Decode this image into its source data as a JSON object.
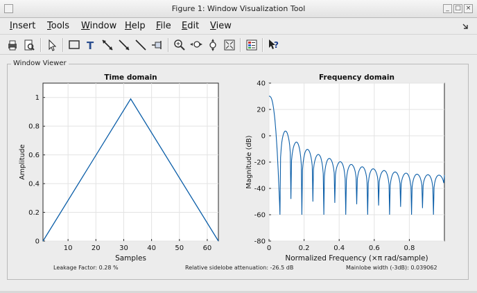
{
  "window": {
    "title": "Figure 1: Window Visualization Tool"
  },
  "menu": [
    {
      "id": "insert",
      "label": "Insert",
      "u": "I",
      "rest": "nsert"
    },
    {
      "id": "tools",
      "label": "Tools",
      "u": "T",
      "rest": "ools"
    },
    {
      "id": "window",
      "label": "Window",
      "u": "W",
      "rest": "indow"
    },
    {
      "id": "help",
      "label": "Help",
      "u": "H",
      "rest": "elp"
    },
    {
      "id": "file",
      "label": "File",
      "u": "F",
      "rest": "ile"
    },
    {
      "id": "edit",
      "label": "Edit",
      "u": "E",
      "rest": "dit"
    },
    {
      "id": "view",
      "label": "View",
      "u": "V",
      "rest": "iew"
    }
  ],
  "toolbar": {
    "icons": [
      "print-icon",
      "print-preview-icon",
      "select-arrow-icon",
      "rectangle-icon",
      "text-icon",
      "double-arrow-icon",
      "arrow-icon",
      "line-icon",
      "pin-icon",
      "zoom-in-icon",
      "zoom-x-icon",
      "zoom-y-icon",
      "full-view-icon",
      "legend-icon",
      "whats-this-icon"
    ]
  },
  "panel": {
    "title": "Window Viewer"
  },
  "footer": {
    "leakage": "Leakage Factor: 0.28 %",
    "sidelobe": "Relative sidelobe attenuation: -26.5 dB",
    "mainlobe": "Mainlobe width (-3dB): 0.039062"
  },
  "chart_data": [
    {
      "type": "line",
      "title": "Time domain",
      "xlabel": "Samples",
      "ylabel": "Amplitude",
      "xlim": [
        1,
        64
      ],
      "ylim": [
        0,
        1.1
      ],
      "xticks": [
        10,
        20,
        30,
        40,
        50,
        60
      ],
      "yticks": [
        0,
        0.2,
        0.4,
        0.6,
        0.8,
        1
      ],
      "ytick_labels": [
        "0",
        "0.2",
        "0.4",
        "0.6",
        "0.8",
        "1"
      ],
      "grid": true,
      "color": "#0b5ea8",
      "series": [
        {
          "x": [
            1,
            32.5,
            64
          ],
          "y": [
            0,
            0.99,
            0
          ]
        }
      ]
    },
    {
      "type": "line",
      "title": "Frequency domain",
      "xlabel": "Normalized Frequency  (×π rad/sample)",
      "ylabel": "Magnitude (dB)",
      "xlim": [
        0,
        1
      ],
      "ylim": [
        -80,
        40
      ],
      "xticks": [
        0,
        0.2,
        0.4,
        0.6,
        0.8
      ],
      "xtick_labels": [
        "0",
        "0.2",
        "0.4",
        "0.6",
        "0.8"
      ],
      "yticks": [
        -80,
        -60,
        -40,
        -20,
        0,
        20,
        40
      ],
      "grid": true,
      "color": "#0b5ea8",
      "mainlobe_db": 30.1,
      "nulls": [
        0.0625,
        0.125,
        0.1875,
        0.25,
        0.3125,
        0.375,
        0.4375,
        0.5,
        0.5625,
        0.625,
        0.6875,
        0.75,
        0.8125,
        0.875,
        0.9375
      ],
      "sidelobe_peaks_db": [
        3.6,
        -4.8,
        -10.3,
        -14.2,
        -17.2,
        -19.7,
        -21.8,
        -23.6,
        -25.1,
        -26.4,
        -27.5,
        -28.4,
        -29.2,
        -29.6,
        -29.9
      ],
      "null_floor_db": [
        -60,
        -48,
        -60,
        -50,
        -60,
        -51,
        -60,
        -52,
        -60,
        -53,
        -60,
        -54,
        -60,
        -55,
        -60
      ]
    }
  ]
}
